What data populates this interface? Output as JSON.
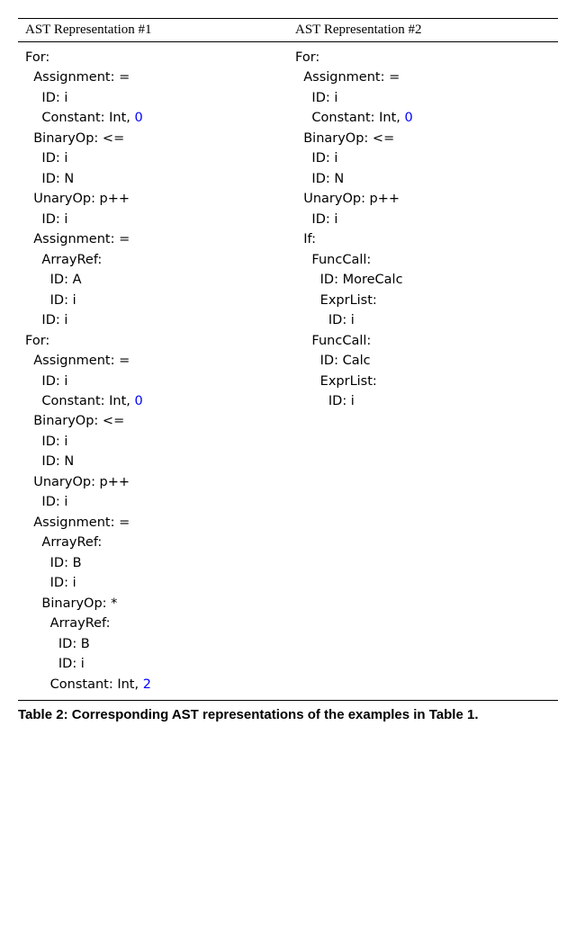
{
  "header": {
    "col1": "AST Representation #1",
    "col2": "AST Representation #2"
  },
  "ast1": [
    {
      "indent": 0,
      "text": "For:"
    },
    {
      "indent": 1,
      "text": "Assignment: ="
    },
    {
      "indent": 2,
      "text": "ID: i"
    },
    {
      "indent": 2,
      "text": "Constant: Int, ",
      "num": "0"
    },
    {
      "indent": 1,
      "text": "BinaryOp: <="
    },
    {
      "indent": 2,
      "text": "ID: i"
    },
    {
      "indent": 2,
      "text": "ID: N"
    },
    {
      "indent": 1,
      "text": "UnaryOp: p++"
    },
    {
      "indent": 2,
      "text": "ID: i"
    },
    {
      "indent": 1,
      "text": "Assignment: ="
    },
    {
      "indent": 2,
      "text": "ArrayRef:"
    },
    {
      "indent": 3,
      "text": "ID: A"
    },
    {
      "indent": 3,
      "text": "ID: i"
    },
    {
      "indent": 2,
      "text": "ID: i"
    },
    {
      "indent": 0,
      "text": "For:"
    },
    {
      "indent": 1,
      "text": "Assignment: ="
    },
    {
      "indent": 2,
      "text": "ID: i"
    },
    {
      "indent": 2,
      "text": "Constant: Int, ",
      "num": "0"
    },
    {
      "indent": 1,
      "text": "BinaryOp: <="
    },
    {
      "indent": 2,
      "text": "ID: i"
    },
    {
      "indent": 2,
      "text": "ID: N"
    },
    {
      "indent": 1,
      "text": "UnaryOp: p++"
    },
    {
      "indent": 2,
      "text": "ID: i"
    },
    {
      "indent": 1,
      "text": "Assignment: ="
    },
    {
      "indent": 2,
      "text": "ArrayRef:"
    },
    {
      "indent": 3,
      "text": "ID: B"
    },
    {
      "indent": 3,
      "text": "ID: i"
    },
    {
      "indent": 2,
      "text": "BinaryOp: *"
    },
    {
      "indent": 3,
      "text": "ArrayRef:"
    },
    {
      "indent": 4,
      "text": "ID: B"
    },
    {
      "indent": 4,
      "text": "ID: i"
    },
    {
      "indent": 3,
      "text": "Constant: Int, ",
      "num": "2"
    }
  ],
  "ast2": [
    {
      "indent": 0,
      "text": "For:"
    },
    {
      "indent": 1,
      "text": "Assignment: ="
    },
    {
      "indent": 2,
      "text": "ID: i"
    },
    {
      "indent": 2,
      "text": "Constant: Int, ",
      "num": "0"
    },
    {
      "indent": 1,
      "text": "BinaryOp: <="
    },
    {
      "indent": 2,
      "text": "ID: i"
    },
    {
      "indent": 2,
      "text": "ID: N"
    },
    {
      "indent": 1,
      "text": "UnaryOp: p++"
    },
    {
      "indent": 2,
      "text": "ID: i"
    },
    {
      "indent": 1,
      "text": "If:"
    },
    {
      "indent": 2,
      "text": "FuncCall:"
    },
    {
      "indent": 3,
      "text": "ID: MoreCalc"
    },
    {
      "indent": 3,
      "text": "ExprList:"
    },
    {
      "indent": 4,
      "text": "ID: i"
    },
    {
      "indent": 2,
      "text": "FuncCall:"
    },
    {
      "indent": 3,
      "text": "ID: Calc"
    },
    {
      "indent": 3,
      "text": "ExprList:"
    },
    {
      "indent": 4,
      "text": "ID: i"
    }
  ],
  "caption": "Table 2: Corresponding AST representations of the examples in Table 1.",
  "styling": {
    "indent_spaces": 2,
    "num_color": "#0000ff",
    "text_color": "#000000",
    "code_fontsize": 14.5,
    "caption_fontsize": 15,
    "border_color": "#000000"
  }
}
